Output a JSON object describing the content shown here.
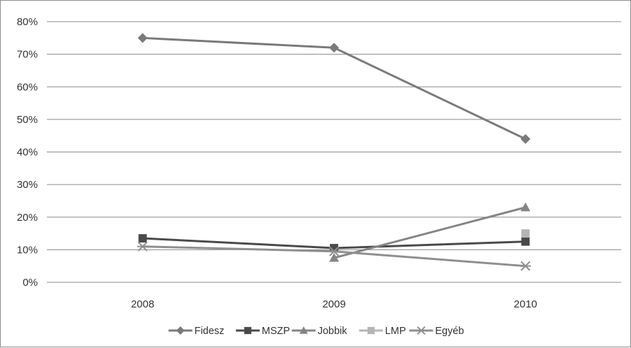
{
  "chart_data": {
    "type": "line",
    "title": "",
    "xlabel": "",
    "ylabel": "",
    "x": [
      "2008",
      "2009",
      "2010"
    ],
    "ylim": [
      0,
      0.8
    ],
    "yticks": [
      "0%",
      "10%",
      "20%",
      "30%",
      "40%",
      "50%",
      "60%",
      "70%",
      "80%"
    ],
    "grid": true,
    "legend_position": "bottom",
    "series": [
      {
        "name": "Fidesz",
        "values": [
          0.75,
          0.72,
          0.44
        ],
        "color": "#7a7a7a",
        "marker": "diamond"
      },
      {
        "name": "MSZP",
        "values": [
          0.135,
          0.105,
          0.125
        ],
        "color": "#4a4a4a",
        "marker": "square"
      },
      {
        "name": "Jobbik",
        "values": [
          null,
          0.075,
          0.23
        ],
        "color": "#858585",
        "marker": "triangle"
      },
      {
        "name": "LMP",
        "values": [
          null,
          null,
          0.15
        ],
        "color": "#b5b5b5",
        "marker": "square"
      },
      {
        "name": "Egyéb",
        "values": [
          0.11,
          0.095,
          0.05
        ],
        "color": "#8f8f8f",
        "marker": "star"
      }
    ]
  }
}
